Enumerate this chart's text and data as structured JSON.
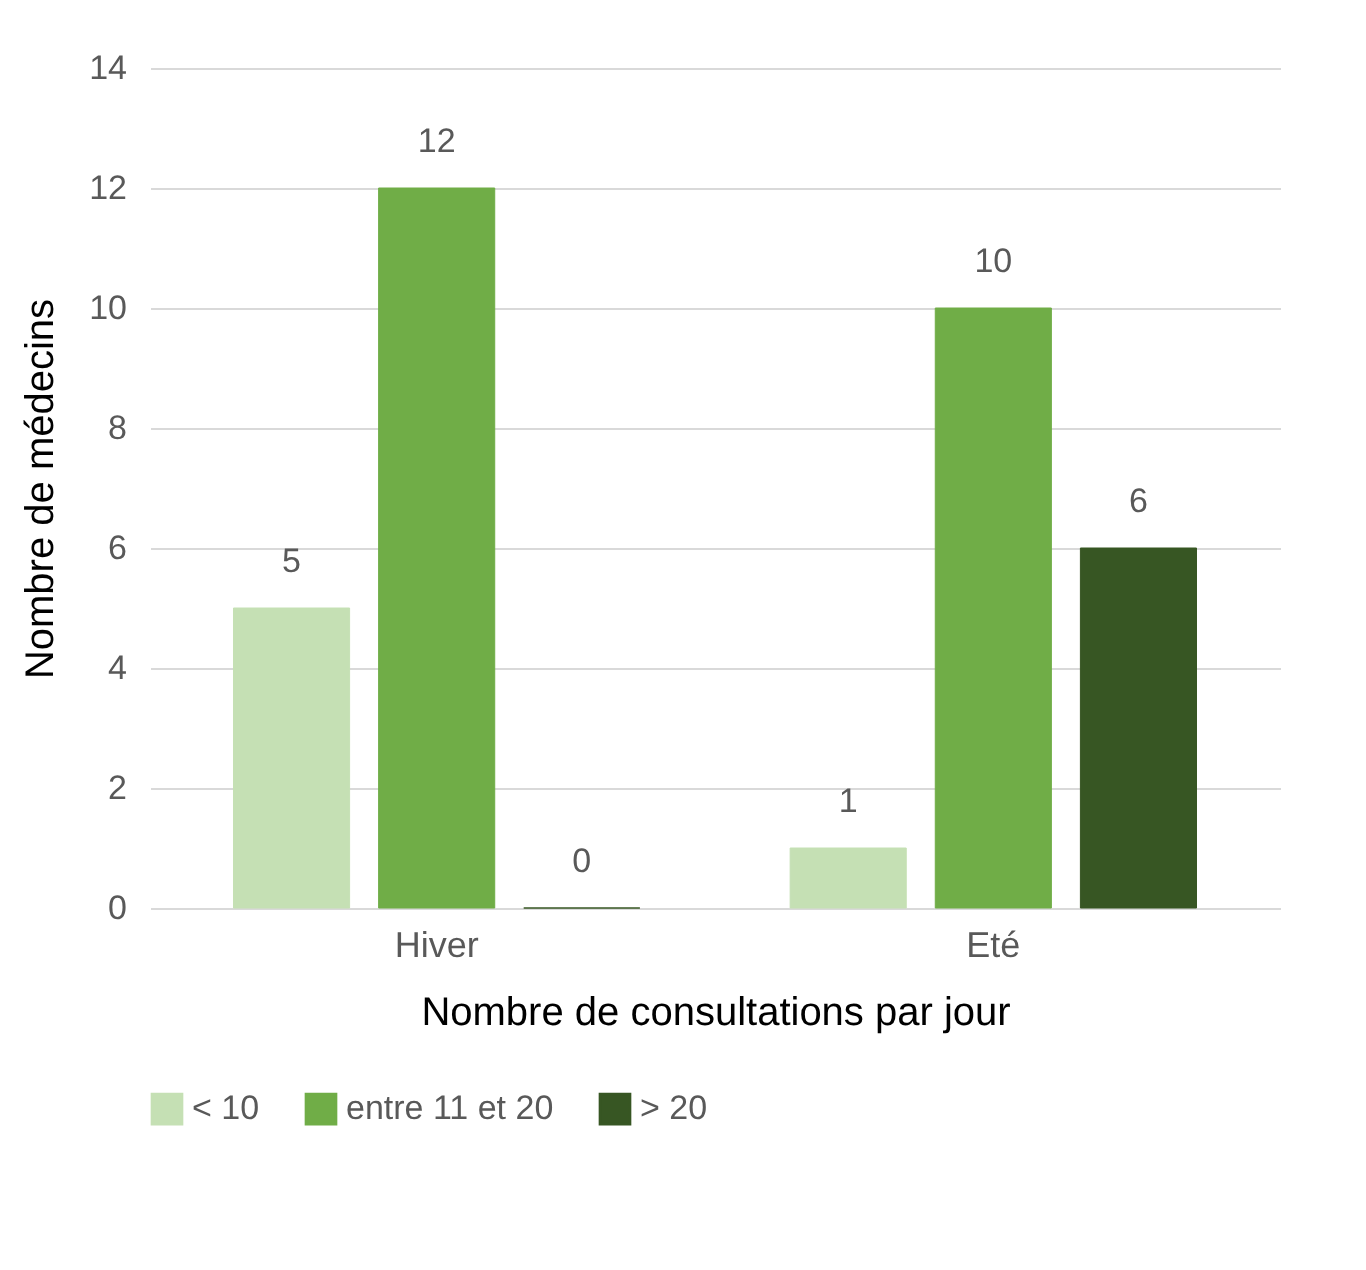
{
  "chart_data": {
    "type": "bar",
    "xlabel": "Nombre de consultations par jour",
    "ylabel": "Nombre de médecins",
    "categories": [
      "Hiver",
      "Eté"
    ],
    "series": [
      {
        "name": "< 10",
        "color": "#c5e0b4",
        "values": [
          5,
          1
        ]
      },
      {
        "name": "entre 11 et 20",
        "color": "#70ad47",
        "values": [
          12,
          10
        ]
      },
      {
        "name": "> 20",
        "color": "#375623",
        "values": [
          0,
          6
        ]
      }
    ],
    "ylim": [
      0,
      14
    ],
    "yticks": [
      0,
      2,
      4,
      6,
      8,
      10,
      12,
      14
    ],
    "grid": "y",
    "legend": "bottom",
    "data_labels": true
  }
}
